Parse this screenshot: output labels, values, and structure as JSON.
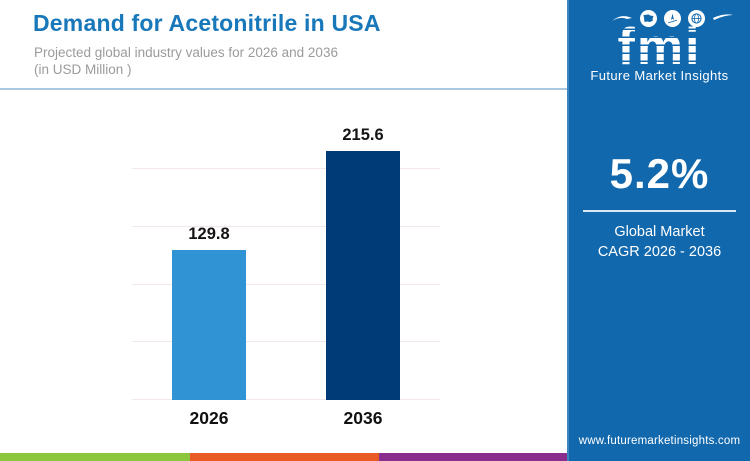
{
  "header": {
    "title": "Demand for Acetonitrile in USA",
    "subtitle_line1": "Projected global industry values for 2026 and 2036",
    "subtitle_line2": "(in USD Million )"
  },
  "sidebar": {
    "logo_text": "fmi",
    "logo_subtext": "Future Market Insights",
    "stat_value": "5.2%",
    "stat_label_line1": "Global Market",
    "stat_label_line2": "CAGR 2026 - 2036",
    "website": "www.futuremarketinsights.com",
    "background_color": "#1268ad"
  },
  "chart_data": {
    "type": "bar",
    "title": "Demand for Acetonitrile in USA",
    "subtitle": "Projected global industry values for 2026 and 2036 (in USD Million )",
    "categories": [
      "2026",
      "2036"
    ],
    "values": [
      129.8,
      215.6
    ],
    "xlabel": "",
    "ylabel": "USD Million",
    "ylim": [
      0,
      200
    ],
    "gridline_step": 50,
    "grid": true,
    "legend": false,
    "bar_colors": [
      "#3093d3",
      "#003b77"
    ],
    "gridline_color": "#f3e8e8"
  },
  "footer_strip": {
    "colors": [
      "#8cc63e",
      "#e95b25",
      "#8b2f8f",
      "#11689e"
    ]
  }
}
